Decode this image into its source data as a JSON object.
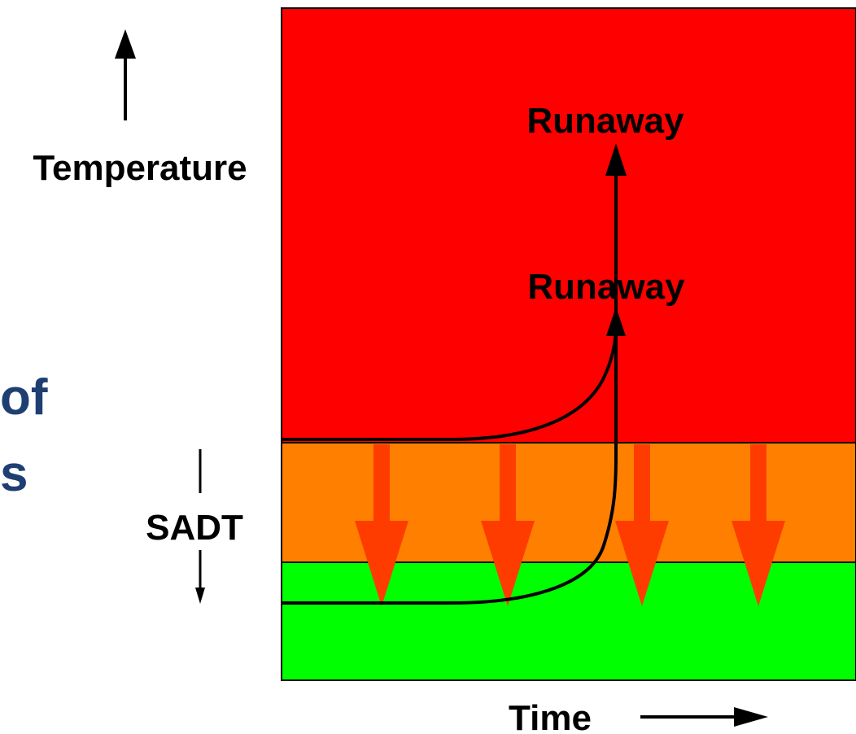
{
  "title_fragments": [
    "of",
    "s"
  ],
  "labels": {
    "temperature": "Temperature",
    "runaway_upper": "Runaway",
    "runaway_lower": "Runaway",
    "sadt": "SADT",
    "time": "Time"
  },
  "colors": {
    "hot_zone": "#ff0000",
    "warning_zone": "#ff8000",
    "safe_zone": "#00ff00",
    "cooling_arrows": "#ff3c00",
    "title_text": "#1f3f73",
    "curves": "#000000"
  },
  "icons": {
    "temperature_axis": "arrow-up-icon",
    "time_axis": "arrow-right-icon",
    "sadt_marker": "double-arrow-vertical-icon",
    "cooling": "arrow-down-icon"
  }
}
